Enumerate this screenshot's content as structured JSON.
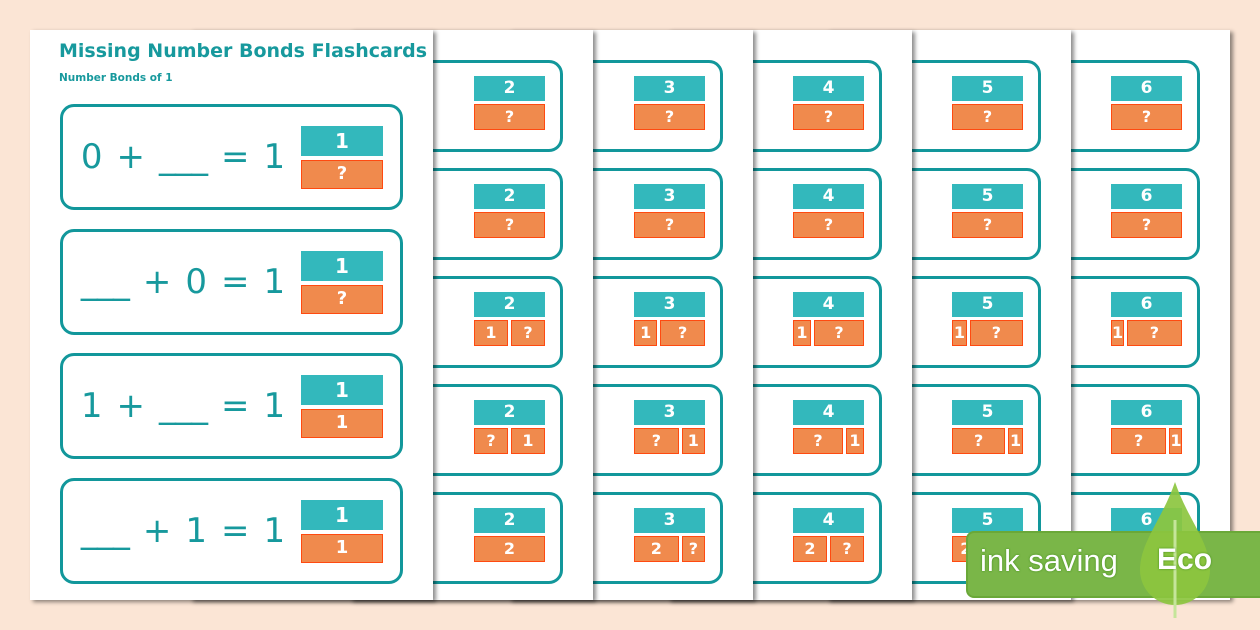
{
  "front": {
    "title": "Missing Number Bonds Flashcards",
    "subtitle": "Number Bonds of 1",
    "cards": [
      {
        "eq": [
          "0",
          "+",
          "___",
          "=",
          "1"
        ],
        "top": "1",
        "bottom": [
          "?"
        ]
      },
      {
        "eq": [
          "___",
          "+",
          "0",
          "=",
          "1"
        ],
        "top": "1",
        "bottom": [
          "?"
        ]
      },
      {
        "eq": [
          "1",
          "+",
          "___",
          "=",
          "1"
        ],
        "top": "1",
        "bottom": [
          "1"
        ]
      },
      {
        "eq": [
          "___",
          "+",
          "1",
          "=",
          "1"
        ],
        "top": "1",
        "bottom": [
          "1"
        ]
      }
    ]
  },
  "back_pages": [
    {
      "cards": [
        {
          "top": "2",
          "bottom": [
            "?"
          ]
        },
        {
          "top": "2",
          "bottom": [
            "?"
          ]
        },
        {
          "top": "2",
          "bottom": [
            "1",
            "?"
          ]
        },
        {
          "top": "2",
          "bottom": [
            "?",
            "1"
          ]
        },
        {
          "top": "2",
          "bottom": [
            "2"
          ]
        }
      ]
    },
    {
      "cards": [
        {
          "top": "3",
          "bottom": [
            "?"
          ]
        },
        {
          "top": "3",
          "bottom": [
            "?"
          ]
        },
        {
          "top": "3",
          "bottom": [
            "1",
            "?"
          ]
        },
        {
          "top": "3",
          "bottom": [
            "?",
            "1"
          ]
        },
        {
          "top": "3",
          "bottom": [
            "2",
            "?"
          ]
        }
      ]
    },
    {
      "cards": [
        {
          "top": "4",
          "bottom": [
            "?"
          ]
        },
        {
          "top": "4",
          "bottom": [
            "?"
          ]
        },
        {
          "top": "4",
          "bottom": [
            "1",
            "?"
          ]
        },
        {
          "top": "4",
          "bottom": [
            "?",
            "1"
          ]
        },
        {
          "top": "4",
          "bottom": [
            "2",
            "?"
          ]
        }
      ]
    },
    {
      "cards": [
        {
          "top": "5",
          "bottom": [
            "?"
          ]
        },
        {
          "top": "5",
          "bottom": [
            "?"
          ]
        },
        {
          "top": "5",
          "bottom": [
            "1",
            "?"
          ]
        },
        {
          "top": "5",
          "bottom": [
            "?",
            "1"
          ]
        },
        {
          "top": "5",
          "bottom": [
            "2"
          ]
        }
      ]
    },
    {
      "cards": [
        {
          "top": "6",
          "bottom": [
            "?"
          ]
        },
        {
          "top": "6",
          "bottom": [
            "?"
          ]
        },
        {
          "top": "6",
          "bottom": [
            "1",
            "?"
          ]
        },
        {
          "top": "6",
          "bottom": [
            "?",
            "1"
          ]
        },
        {
          "top": "6",
          "bottom": []
        }
      ]
    }
  ],
  "eco_badge": {
    "text": "ink saving",
    "label": "Eco",
    "color": "#7ab648"
  },
  "colors": {
    "teal": "#33b8bc",
    "orange": "#f08a4d",
    "border": "#12979b",
    "background": "#fbe5d5"
  }
}
